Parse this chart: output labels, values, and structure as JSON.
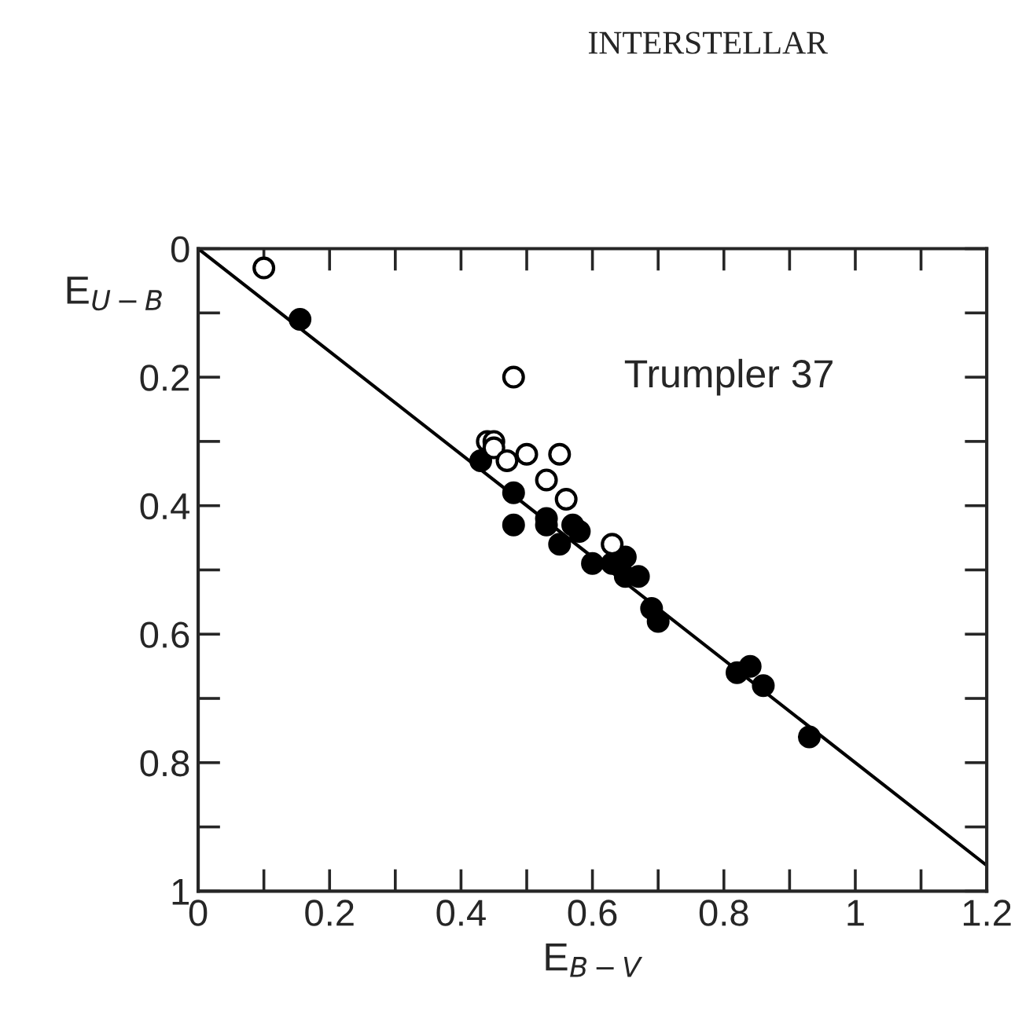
{
  "chart_data": {
    "type": "scatter",
    "xlabel": "E$_{B−V}$",
    "ylabel": "E$_{U−B}$",
    "annotations": [
      "INTERSTELLAR",
      "Trumpler 37"
    ],
    "xlim": [
      0,
      1.2
    ],
    "ylim": [
      1,
      0
    ],
    "xticks": [
      0,
      {
        "value": 0.1,
        "label": null
      },
      0.2,
      {
        "value": 0.3,
        "label": null
      },
      0.4,
      {
        "value": 0.5,
        "label": null
      },
      0.6,
      {
        "value": 0.7,
        "label": null
      },
      0.8,
      {
        "value": 0.9,
        "label": null
      },
      1,
      {
        "value": 1.1,
        "label": null
      },
      1.2
    ],
    "yticks": [
      0,
      {
        "value": 0.1,
        "label": null
      },
      0.2,
      {
        "value": 0.3,
        "label": null
      },
      0.4,
      {
        "value": 0.5,
        "label": null
      },
      0.6,
      {
        "value": 0.7,
        "label": null
      },
      0.8,
      {
        "value": 0.9,
        "label": null
      },
      1
    ],
    "grid": false,
    "marker": "circle",
    "series": [
      {
        "color": "#000000",
        "x": [
          0.155,
          0.43,
          0.48,
          0.48,
          0.53,
          0.53,
          0.55,
          0.57,
          0.58,
          0.6,
          0.63,
          0.65,
          0.65,
          0.67,
          0.69,
          0.7,
          0.82,
          0.84,
          0.86,
          0.93
        ],
        "values": [
          0.11,
          0.33,
          0.38,
          0.43,
          0.42,
          0.43,
          0.46,
          0.43,
          0.44,
          0.49,
          0.49,
          0.48,
          0.51,
          0.51,
          0.56,
          0.58,
          0.66,
          0.65,
          0.68,
          0.76
        ]
      },
      {
        "color": "#ffffff",
        "x": [
          0.1,
          0.48,
          0.44,
          0.45,
          0.45,
          0.47,
          0.5,
          0.53,
          0.55,
          0.56,
          0.63
        ],
        "values": [
          0.03,
          0.2,
          0.3,
          0.3,
          0.31,
          0.33,
          0.32,
          0.36,
          0.32,
          0.39,
          0.46
        ]
      },
      {
        "type": "line",
        "marker": "none",
        "line_style": "solid",
        "color": "#000000",
        "x": [
          0,
          1.2
        ],
        "values": [
          0,
          0.96
        ]
      }
    ]
  }
}
